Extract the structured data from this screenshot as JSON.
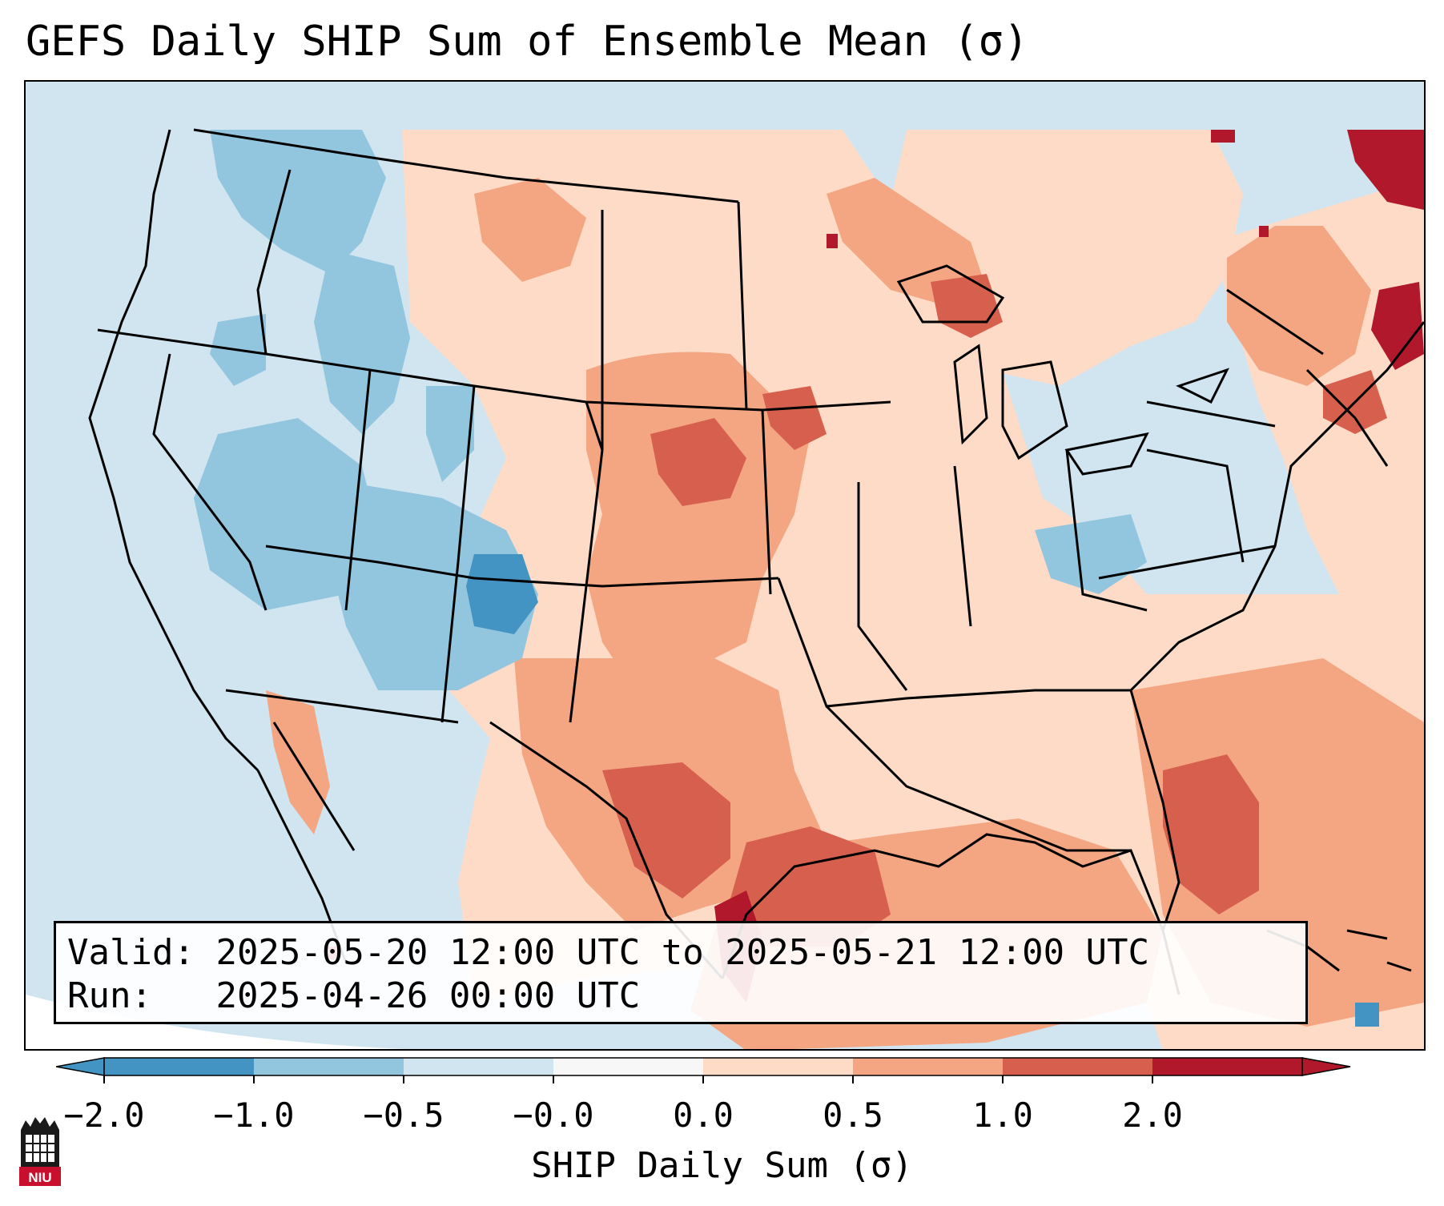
{
  "title": "GEFS Daily SHIP Sum of Ensemble Mean (σ)",
  "infobox": {
    "valid_label": "Valid:",
    "valid_value": "2025-05-20 12:00 UTC to 2025-05-21 12:00 UTC",
    "run_label": "Run:",
    "run_value": "2025-04-26 00:00 UTC"
  },
  "colorbar": {
    "label": "SHIP Daily Sum (σ)",
    "ticks": [
      "−2.0",
      "−1.0",
      "−0.5",
      "−0.0",
      "0.0",
      "0.5",
      "1.0",
      "2.0"
    ],
    "colors": [
      "#4393c3",
      "#92c5de",
      "#d1e5f0",
      "#f7f7f7",
      "#fddbc7",
      "#f4a582",
      "#d6604d",
      "#b2182b"
    ]
  },
  "logo": {
    "text": "NIU",
    "colors": {
      "red": "#c8102e",
      "black": "#1a1a1a"
    }
  }
}
